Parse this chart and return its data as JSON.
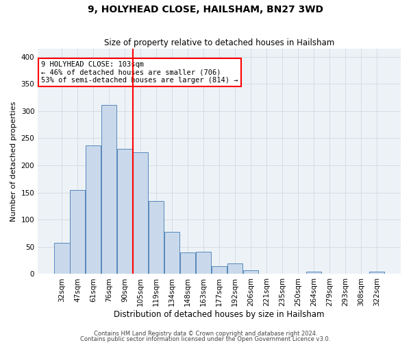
{
  "title": "9, HOLYHEAD CLOSE, HAILSHAM, BN27 3WD",
  "subtitle": "Size of property relative to detached houses in Hailsham",
  "xlabel": "Distribution of detached houses by size in Hailsham",
  "ylabel": "Number of detached properties",
  "bar_labels": [
    "32sqm",
    "47sqm",
    "61sqm",
    "76sqm",
    "90sqm",
    "105sqm",
    "119sqm",
    "134sqm",
    "148sqm",
    "163sqm",
    "177sqm",
    "192sqm",
    "206sqm",
    "221sqm",
    "235sqm",
    "250sqm",
    "264sqm",
    "279sqm",
    "293sqm",
    "308sqm",
    "322sqm"
  ],
  "bar_values": [
    57,
    154,
    237,
    311,
    230,
    224,
    135,
    78,
    40,
    41,
    14,
    19,
    7,
    0,
    0,
    0,
    4,
    0,
    0,
    0,
    4
  ],
  "bar_color": "#c9d9eb",
  "bar_edge_color": "#5588bb",
  "grid_color": "#d0d8e0",
  "background_color": "#edf2f7",
  "vline_color": "red",
  "vline_x": 4.5,
  "annotation_text": "9 HOLYHEAD CLOSE: 103sqm\n← 46% of detached houses are smaller (706)\n53% of semi-detached houses are larger (814) →",
  "annotation_box_color": "white",
  "annotation_box_edge_color": "red",
  "ylim": [
    0,
    415
  ],
  "yticks": [
    0,
    50,
    100,
    150,
    200,
    250,
    300,
    350,
    400
  ],
  "footer1": "Contains HM Land Registry data © Crown copyright and database right 2024.",
  "footer2": "Contains public sector information licensed under the Open Government Licence v3.0."
}
